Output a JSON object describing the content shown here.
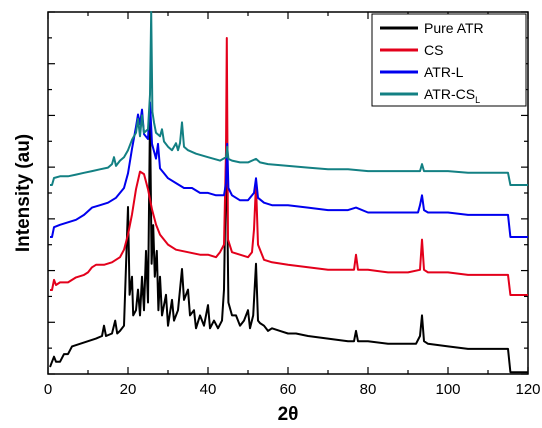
{
  "chart_data": {
    "type": "line",
    "title": "",
    "xlabel": "2θ",
    "ylabel": "Intensity (au)",
    "xlim": [
      0,
      120
    ],
    "xticks": [
      "0",
      "20",
      "40",
      "60",
      "80",
      "100",
      "120"
    ],
    "y_tick_labels": false,
    "grid": false,
    "legend_position": "top-right",
    "colors": {
      "Pure ATR": "#000000",
      "CS": "#e3001b",
      "ATR-L": "#0000ee",
      "ATR-CS_L": "#138083"
    },
    "series": [
      {
        "name": "Pure ATR",
        "legend": {
          "text": "Pure ATR",
          "sub": ""
        },
        "points": [
          [
            0.5,
            0
          ],
          [
            1,
            0.02
          ],
          [
            1.5,
            0.04
          ],
          [
            2,
            0.02
          ],
          [
            3,
            0.02
          ],
          [
            4,
            0.05
          ],
          [
            5,
            0.05
          ],
          [
            6,
            0.08
          ],
          [
            8,
            0.09
          ],
          [
            10,
            0.1
          ],
          [
            12,
            0.11
          ],
          [
            13.5,
            0.12
          ],
          [
            14,
            0.16
          ],
          [
            14.5,
            0.12
          ],
          [
            16,
            0.13
          ],
          [
            16.8,
            0.18
          ],
          [
            17.3,
            0.13
          ],
          [
            18,
            0.14
          ],
          [
            19,
            0.16
          ],
          [
            20,
            0.62
          ],
          [
            20.4,
            0.28
          ],
          [
            21,
            0.35
          ],
          [
            21.3,
            0.2
          ],
          [
            22,
            0.22
          ],
          [
            22.5,
            0.3
          ],
          [
            23,
            0.2
          ],
          [
            23.5,
            0.35
          ],
          [
            24,
            0.22
          ],
          [
            24.5,
            0.45
          ],
          [
            25,
            0.25
          ],
          [
            25.5,
            0.98
          ],
          [
            25.9,
            0.4
          ],
          [
            26.3,
            0.55
          ],
          [
            26.7,
            0.35
          ],
          [
            27.2,
            0.45
          ],
          [
            27.6,
            0.22
          ],
          [
            28,
            0.35
          ],
          [
            28.5,
            0.2
          ],
          [
            29.5,
            0.28
          ],
          [
            30,
            0.16
          ],
          [
            31,
            0.26
          ],
          [
            31.5,
            0.18
          ],
          [
            32.5,
            0.22
          ],
          [
            33,
            0.3
          ],
          [
            33.5,
            0.38
          ],
          [
            34,
            0.26
          ],
          [
            35,
            0.3
          ],
          [
            35.5,
            0.2
          ],
          [
            36.5,
            0.22
          ],
          [
            37,
            0.15
          ],
          [
            38,
            0.2
          ],
          [
            39,
            0.16
          ],
          [
            40,
            0.24
          ],
          [
            40.5,
            0.15
          ],
          [
            41.5,
            0.18
          ],
          [
            42.5,
            0.15
          ],
          [
            43.5,
            0.18
          ],
          [
            44,
            0.3
          ],
          [
            44.6,
            0.88
          ],
          [
            45.1,
            0.25
          ],
          [
            46,
            0.2
          ],
          [
            47,
            0.2
          ],
          [
            48,
            0.16
          ],
          [
            49,
            0.18
          ],
          [
            50,
            0.22
          ],
          [
            50.5,
            0.15
          ],
          [
            51.3,
            0.2
          ],
          [
            52,
            0.4
          ],
          [
            52.5,
            0.18
          ],
          [
            53,
            0.17
          ],
          [
            54,
            0.16
          ],
          [
            55,
            0.14
          ],
          [
            56,
            0.15
          ],
          [
            58,
            0.14
          ],
          [
            60,
            0.13
          ],
          [
            62,
            0.13
          ],
          [
            65,
            0.12
          ],
          [
            70,
            0.11
          ],
          [
            75,
            0.1
          ],
          [
            76.5,
            0.1
          ],
          [
            77,
            0.14
          ],
          [
            77.5,
            0.1
          ],
          [
            80,
            0.1
          ],
          [
            85,
            0.09
          ],
          [
            90,
            0.09
          ],
          [
            92,
            0.09
          ],
          [
            93,
            0.12
          ],
          [
            93.5,
            0.2
          ],
          [
            94,
            0.1
          ],
          [
            95,
            0.09
          ],
          [
            100,
            0.08
          ],
          [
            105,
            0.07
          ],
          [
            110,
            0.07
          ],
          [
            114,
            0.07
          ],
          [
            115,
            0.07
          ],
          [
            115.6,
            -0.02
          ],
          [
            120,
            -0.02
          ]
        ]
      },
      {
        "name": "CS",
        "legend": {
          "text": "CS",
          "sub": ""
        },
        "points": [
          [
            0.5,
            0
          ],
          [
            1,
            0
          ],
          [
            1.5,
            0.04
          ],
          [
            2,
            0.02
          ],
          [
            3,
            0.03
          ],
          [
            5,
            0.03
          ],
          [
            7,
            0.05
          ],
          [
            9,
            0.06
          ],
          [
            10,
            0.07
          ],
          [
            11,
            0.09
          ],
          [
            12,
            0.1
          ],
          [
            13,
            0.1
          ],
          [
            14,
            0.1
          ],
          [
            16,
            0.11
          ],
          [
            18,
            0.13
          ],
          [
            19,
            0.16
          ],
          [
            20,
            0.22
          ],
          [
            21,
            0.3
          ],
          [
            22,
            0.4
          ],
          [
            23,
            0.47
          ],
          [
            24,
            0.46
          ],
          [
            25,
            0.4
          ],
          [
            26,
            0.32
          ],
          [
            27,
            0.26
          ],
          [
            28,
            0.22
          ],
          [
            30,
            0.18
          ],
          [
            32,
            0.16
          ],
          [
            35,
            0.15
          ],
          [
            38,
            0.14
          ],
          [
            40,
            0.14
          ],
          [
            42,
            0.13
          ],
          [
            43,
            0.15
          ],
          [
            44,
            0.18
          ],
          [
            44.5,
            0.55
          ],
          [
            44.7,
            1
          ],
          [
            45,
            0.2
          ],
          [
            46,
            0.15
          ],
          [
            48,
            0.14
          ],
          [
            50,
            0.13
          ],
          [
            51,
            0.15
          ],
          [
            51.5,
            0.24
          ],
          [
            52,
            0.42
          ],
          [
            52.5,
            0.18
          ],
          [
            54,
            0.12
          ],
          [
            56,
            0.11
          ],
          [
            60,
            0.1
          ],
          [
            65,
            0.09
          ],
          [
            70,
            0.08
          ],
          [
            75,
            0.08
          ],
          [
            76.5,
            0.08
          ],
          [
            77,
            0.14
          ],
          [
            77.5,
            0.08
          ],
          [
            80,
            0.08
          ],
          [
            85,
            0.07
          ],
          [
            90,
            0.07
          ],
          [
            93,
            0.08
          ],
          [
            93.5,
            0.2
          ],
          [
            94,
            0.08
          ],
          [
            95,
            0.07
          ],
          [
            100,
            0.07
          ],
          [
            105,
            0.06
          ],
          [
            110,
            0.06
          ],
          [
            115,
            0.06
          ],
          [
            115.6,
            -0.02
          ],
          [
            120,
            -0.02
          ]
        ]
      },
      {
        "name": "ATR-L",
        "legend": {
          "text": "ATR-L",
          "sub": ""
        },
        "points": [
          [
            0.5,
            0
          ],
          [
            1,
            0
          ],
          [
            1.5,
            0.04
          ],
          [
            3,
            0.05
          ],
          [
            5,
            0.06
          ],
          [
            7,
            0.07
          ],
          [
            9,
            0.09
          ],
          [
            11,
            0.12
          ],
          [
            13,
            0.13
          ],
          [
            15,
            0.14
          ],
          [
            17,
            0.16
          ],
          [
            19,
            0.2
          ],
          [
            20,
            0.26
          ],
          [
            21,
            0.36
          ],
          [
            22,
            0.45
          ],
          [
            22.5,
            0.5
          ],
          [
            23,
            0.46
          ],
          [
            23.5,
            0.52
          ],
          [
            24,
            0.42
          ],
          [
            25,
            0.4
          ],
          [
            25.5,
            0.55
          ],
          [
            26,
            0.38
          ],
          [
            27,
            0.32
          ],
          [
            27.5,
            0.38
          ],
          [
            28,
            0.28
          ],
          [
            29,
            0.26
          ],
          [
            30,
            0.24
          ],
          [
            32,
            0.22
          ],
          [
            34,
            0.2
          ],
          [
            36,
            0.2
          ],
          [
            38,
            0.18
          ],
          [
            40,
            0.18
          ],
          [
            42,
            0.17
          ],
          [
            44,
            0.17
          ],
          [
            44.5,
            0.22
          ],
          [
            44.8,
            0.38
          ],
          [
            45.1,
            0.2
          ],
          [
            46,
            0.17
          ],
          [
            48,
            0.15
          ],
          [
            50,
            0.15
          ],
          [
            51.5,
            0.18
          ],
          [
            52,
            0.24
          ],
          [
            52.5,
            0.16
          ],
          [
            54,
            0.14
          ],
          [
            56,
            0.13
          ],
          [
            60,
            0.13
          ],
          [
            65,
            0.12
          ],
          [
            70,
            0.11
          ],
          [
            75,
            0.11
          ],
          [
            77,
            0.12
          ],
          [
            80,
            0.1
          ],
          [
            85,
            0.1
          ],
          [
            90,
            0.1
          ],
          [
            92.5,
            0.1
          ],
          [
            93,
            0.13
          ],
          [
            93.5,
            0.17
          ],
          [
            94,
            0.11
          ],
          [
            95,
            0.1
          ],
          [
            100,
            0.1
          ],
          [
            105,
            0.09
          ],
          [
            110,
            0.09
          ],
          [
            115,
            0.09
          ],
          [
            115.6,
            0
          ],
          [
            120,
            0
          ]
        ]
      },
      {
        "name": "ATR-CS_L",
        "legend": {
          "text": "ATR-CS",
          "sub": "L"
        },
        "points": [
          [
            0.5,
            0
          ],
          [
            1,
            0
          ],
          [
            1.5,
            0.04
          ],
          [
            3,
            0.05
          ],
          [
            5,
            0.05
          ],
          [
            7,
            0.06
          ],
          [
            9,
            0.07
          ],
          [
            11,
            0.08
          ],
          [
            13,
            0.09
          ],
          [
            15,
            0.1
          ],
          [
            16,
            0.12
          ],
          [
            16.5,
            0.16
          ],
          [
            17,
            0.11
          ],
          [
            18,
            0.14
          ],
          [
            19,
            0.16
          ],
          [
            20,
            0.2
          ],
          [
            21,
            0.26
          ],
          [
            22,
            0.3
          ],
          [
            22.5,
            0.38
          ],
          [
            23,
            0.28
          ],
          [
            23.5,
            0.4
          ],
          [
            24,
            0.3
          ],
          [
            25,
            0.32
          ],
          [
            25.5,
            0.52
          ],
          [
            25.8,
            1.04
          ],
          [
            26.1,
            0.42
          ],
          [
            26.5,
            0.36
          ],
          [
            27,
            0.3
          ],
          [
            28,
            0.28
          ],
          [
            28.5,
            0.32
          ],
          [
            29,
            0.25
          ],
          [
            30,
            0.22
          ],
          [
            31,
            0.2
          ],
          [
            32,
            0.24
          ],
          [
            32.5,
            0.2
          ],
          [
            33,
            0.24
          ],
          [
            33.5,
            0.36
          ],
          [
            34,
            0.22
          ],
          [
            35,
            0.2
          ],
          [
            37,
            0.18
          ],
          [
            40,
            0.16
          ],
          [
            43,
            0.14
          ],
          [
            44.5,
            0.16
          ],
          [
            44.8,
            0.22
          ],
          [
            45.1,
            0.15
          ],
          [
            46,
            0.14
          ],
          [
            48,
            0.13
          ],
          [
            50,
            0.13
          ],
          [
            52,
            0.15
          ],
          [
            53,
            0.13
          ],
          [
            55,
            0.12
          ],
          [
            60,
            0.11
          ],
          [
            65,
            0.1
          ],
          [
            70,
            0.09
          ],
          [
            75,
            0.09
          ],
          [
            80,
            0.08
          ],
          [
            85,
            0.08
          ],
          [
            90,
            0.08
          ],
          [
            93,
            0.08
          ],
          [
            93.5,
            0.12
          ],
          [
            94,
            0.08
          ],
          [
            95,
            0.08
          ],
          [
            100,
            0.08
          ],
          [
            105,
            0.07
          ],
          [
            110,
            0.07
          ],
          [
            115,
            0.07
          ],
          [
            115.6,
            0
          ],
          [
            120,
            0
          ]
        ]
      }
    ]
  }
}
